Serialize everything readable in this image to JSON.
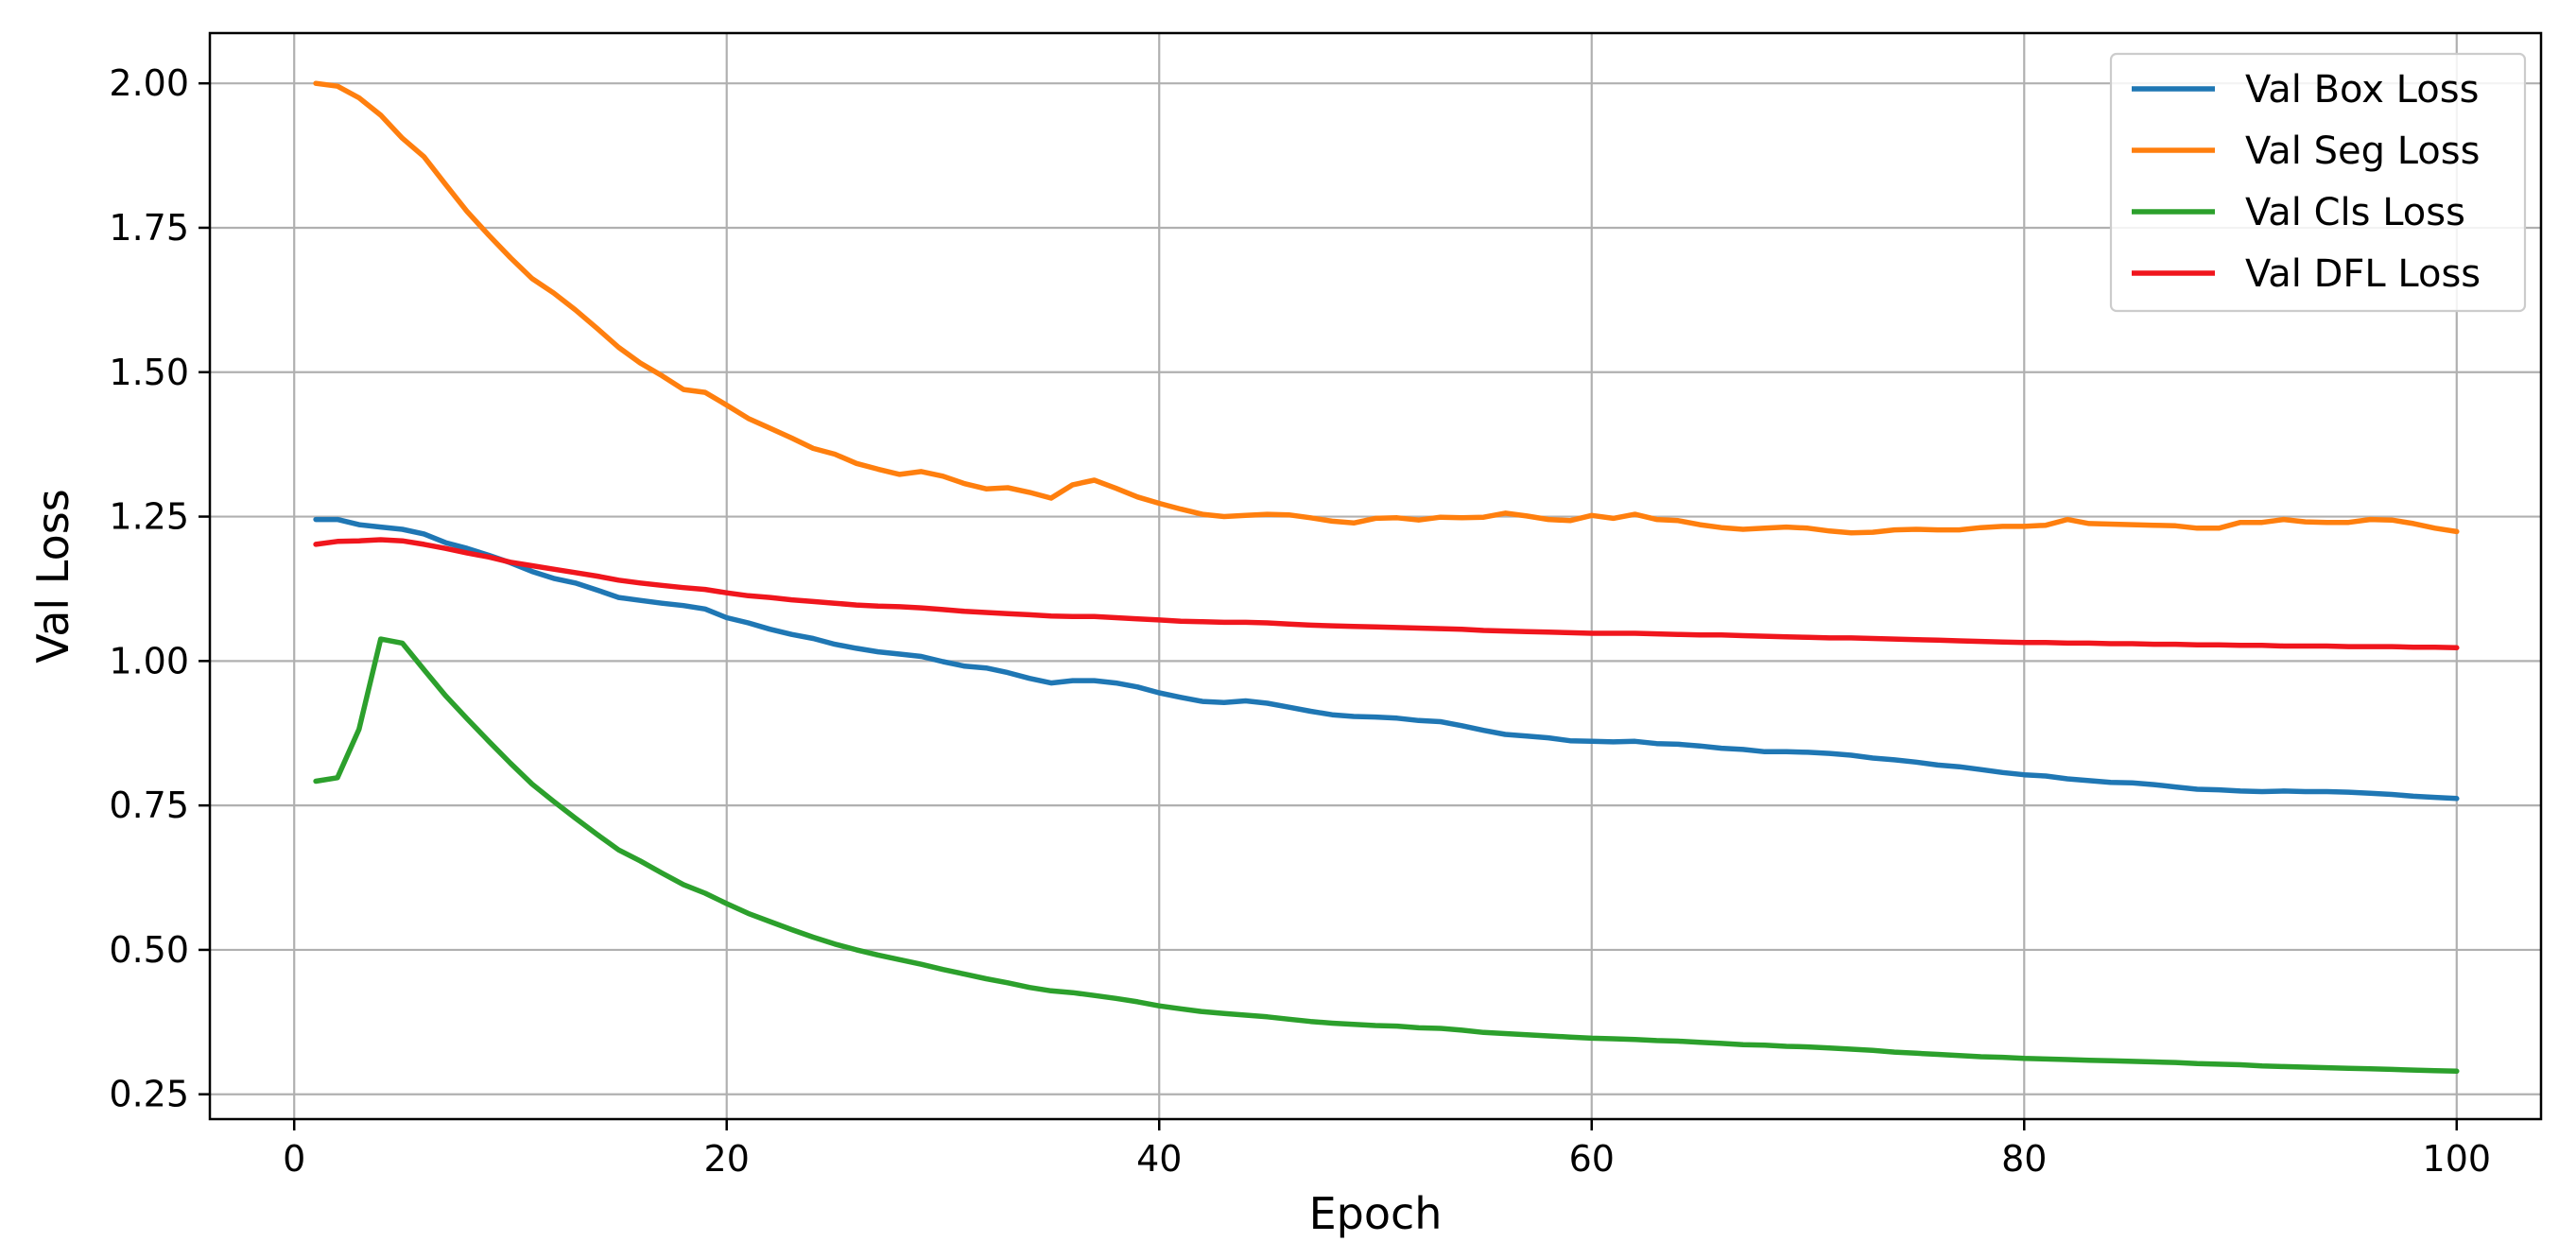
{
  "chart_data": {
    "type": "line",
    "title": "",
    "xlabel": "Epoch",
    "ylabel": "Val Loss",
    "xlim": [
      -3.9,
      103.9
    ],
    "ylim": [
      0.207,
      2.087
    ],
    "xticks": [
      0,
      20,
      40,
      60,
      80,
      100
    ],
    "yticks": [
      0.25,
      0.5,
      0.75,
      1.0,
      1.25,
      1.5,
      1.75,
      2.0
    ],
    "xtick_labels": [
      "0",
      "20",
      "40",
      "60",
      "80",
      "100"
    ],
    "ytick_labels": [
      "0.25",
      "0.50",
      "0.75",
      "1.00",
      "1.25",
      "1.50",
      "1.75",
      "2.00"
    ],
    "grid": true,
    "legend_position": "top-right",
    "x": [
      1,
      2,
      3,
      4,
      5,
      6,
      7,
      8,
      9,
      10,
      11,
      12,
      13,
      14,
      15,
      16,
      17,
      18,
      19,
      20,
      21,
      22,
      23,
      24,
      25,
      26,
      27,
      28,
      29,
      30,
      31,
      32,
      33,
      34,
      35,
      36,
      37,
      38,
      39,
      40,
      41,
      42,
      43,
      44,
      45,
      46,
      47,
      48,
      49,
      50,
      51,
      52,
      53,
      54,
      55,
      56,
      57,
      58,
      59,
      60,
      61,
      62,
      63,
      64,
      65,
      66,
      67,
      68,
      69,
      70,
      71,
      72,
      73,
      74,
      75,
      76,
      77,
      78,
      79,
      80,
      81,
      82,
      83,
      84,
      85,
      86,
      87,
      88,
      89,
      90,
      91,
      92,
      93,
      94,
      95,
      96,
      97,
      98,
      99,
      100
    ],
    "series": [
      {
        "name": "Val Box Loss",
        "color": "#1f77b4",
        "values": [
          1.245,
          1.245,
          1.236,
          1.232,
          1.228,
          1.22,
          1.205,
          1.195,
          1.183,
          1.17,
          1.155,
          1.143,
          1.135,
          1.123,
          1.11,
          1.105,
          1.1,
          1.096,
          1.09,
          1.075,
          1.066,
          1.055,
          1.046,
          1.039,
          1.029,
          1.022,
          1.016,
          1.012,
          1.008,
          0.999,
          0.991,
          0.988,
          0.98,
          0.97,
          0.962,
          0.966,
          0.966,
          0.962,
          0.955,
          0.945,
          0.937,
          0.93,
          0.928,
          0.931,
          0.927,
          0.92,
          0.913,
          0.907,
          0.904,
          0.903,
          0.901,
          0.897,
          0.895,
          0.888,
          0.88,
          0.873,
          0.87,
          0.867,
          0.862,
          0.861,
          0.86,
          0.861,
          0.857,
          0.856,
          0.853,
          0.849,
          0.847,
          0.843,
          0.843,
          0.842,
          0.84,
          0.837,
          0.832,
          0.829,
          0.825,
          0.82,
          0.817,
          0.812,
          0.807,
          0.803,
          0.801,
          0.796,
          0.793,
          0.79,
          0.789,
          0.786,
          0.782,
          0.778,
          0.777,
          0.775,
          0.774,
          0.775,
          0.774,
          0.774,
          0.773,
          0.771,
          0.769,
          0.766,
          0.764,
          0.762
        ]
      },
      {
        "name": "Val Seg Loss",
        "color": "#ff7f0e",
        "values": [
          2.0,
          1.995,
          1.975,
          1.945,
          1.905,
          1.873,
          1.825,
          1.778,
          1.737,
          1.698,
          1.662,
          1.637,
          1.608,
          1.576,
          1.543,
          1.516,
          1.494,
          1.47,
          1.465,
          1.443,
          1.42,
          1.403,
          1.386,
          1.368,
          1.358,
          1.342,
          1.332,
          1.323,
          1.328,
          1.32,
          1.307,
          1.298,
          1.3,
          1.292,
          1.282,
          1.305,
          1.313,
          1.299,
          1.284,
          1.273,
          1.263,
          1.254,
          1.25,
          1.252,
          1.254,
          1.253,
          1.248,
          1.242,
          1.239,
          1.247,
          1.248,
          1.244,
          1.249,
          1.248,
          1.249,
          1.256,
          1.251,
          1.245,
          1.243,
          1.252,
          1.247,
          1.254,
          1.245,
          1.243,
          1.236,
          1.231,
          1.228,
          1.23,
          1.232,
          1.23,
          1.225,
          1.222,
          1.223,
          1.227,
          1.228,
          1.227,
          1.227,
          1.231,
          1.233,
          1.233,
          1.235,
          1.245,
          1.238,
          1.237,
          1.236,
          1.235,
          1.234,
          1.23,
          1.23,
          1.24,
          1.24,
          1.245,
          1.241,
          1.24,
          1.24,
          1.245,
          1.244,
          1.238,
          1.23,
          1.224
        ]
      },
      {
        "name": "Val Cls Loss",
        "color": "#2ca02c",
        "values": [
          0.792,
          0.798,
          0.882,
          1.038,
          1.031,
          0.985,
          0.94,
          0.9,
          0.861,
          0.823,
          0.787,
          0.757,
          0.728,
          0.7,
          0.673,
          0.654,
          0.633,
          0.613,
          0.598,
          0.58,
          0.563,
          0.549,
          0.535,
          0.522,
          0.51,
          0.5,
          0.491,
          0.483,
          0.475,
          0.466,
          0.458,
          0.45,
          0.443,
          0.435,
          0.429,
          0.426,
          0.421,
          0.416,
          0.41,
          0.403,
          0.398,
          0.393,
          0.39,
          0.387,
          0.384,
          0.38,
          0.376,
          0.373,
          0.371,
          0.369,
          0.368,
          0.365,
          0.364,
          0.361,
          0.357,
          0.355,
          0.353,
          0.351,
          0.349,
          0.347,
          0.346,
          0.345,
          0.343,
          0.342,
          0.34,
          0.338,
          0.336,
          0.335,
          0.333,
          0.332,
          0.33,
          0.328,
          0.326,
          0.323,
          0.321,
          0.319,
          0.317,
          0.315,
          0.314,
          0.312,
          0.311,
          0.31,
          0.309,
          0.308,
          0.307,
          0.306,
          0.305,
          0.303,
          0.302,
          0.301,
          0.299,
          0.298,
          0.297,
          0.296,
          0.295,
          0.294,
          0.293,
          0.292,
          0.291,
          0.29
        ]
      },
      {
        "name": "Val DFL Loss",
        "color": "#f0161d",
        "values": [
          1.202,
          1.207,
          1.208,
          1.21,
          1.208,
          1.202,
          1.195,
          1.187,
          1.18,
          1.171,
          1.165,
          1.159,
          1.153,
          1.147,
          1.14,
          1.135,
          1.131,
          1.127,
          1.124,
          1.118,
          1.113,
          1.11,
          1.106,
          1.103,
          1.1,
          1.097,
          1.095,
          1.094,
          1.092,
          1.089,
          1.086,
          1.084,
          1.082,
          1.08,
          1.078,
          1.077,
          1.077,
          1.075,
          1.073,
          1.071,
          1.069,
          1.068,
          1.067,
          1.067,
          1.066,
          1.064,
          1.062,
          1.061,
          1.06,
          1.059,
          1.058,
          1.057,
          1.056,
          1.055,
          1.053,
          1.052,
          1.051,
          1.05,
          1.049,
          1.048,
          1.048,
          1.048,
          1.047,
          1.046,
          1.045,
          1.045,
          1.044,
          1.043,
          1.042,
          1.041,
          1.04,
          1.04,
          1.039,
          1.038,
          1.037,
          1.036,
          1.035,
          1.034,
          1.033,
          1.032,
          1.032,
          1.031,
          1.031,
          1.03,
          1.03,
          1.029,
          1.029,
          1.028,
          1.028,
          1.027,
          1.027,
          1.026,
          1.026,
          1.026,
          1.025,
          1.025,
          1.025,
          1.024,
          1.024,
          1.023
        ]
      }
    ]
  }
}
